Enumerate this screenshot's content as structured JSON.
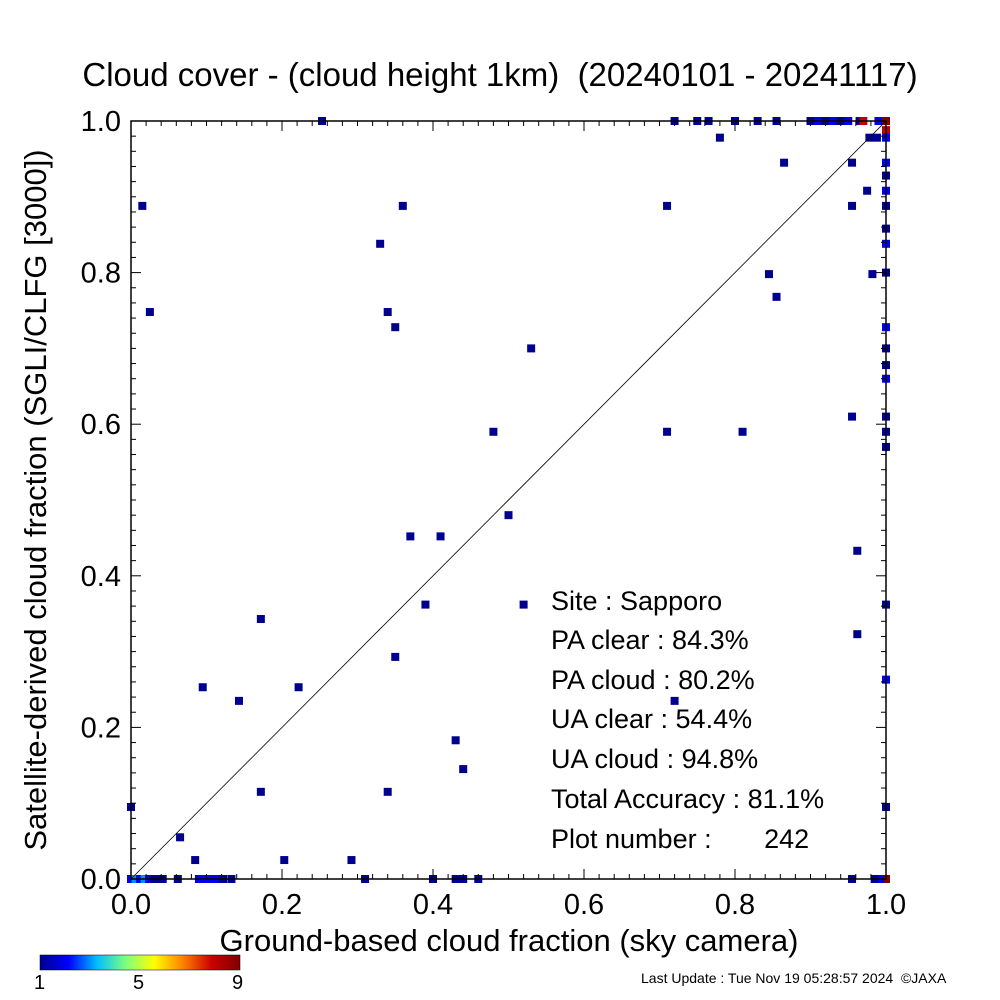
{
  "chart_data": {
    "type": "scatter",
    "title": "Cloud cover - (cloud height 1km)  (20240101 - 20241117)",
    "xlabel": "Ground-based cloud fraction (sky camera)",
    "ylabel": "Satellite-derived cloud fraction (SGLI/CLFG [3000])",
    "xlim": [
      0,
      1
    ],
    "ylim": [
      0,
      1
    ],
    "xticks": [
      "0.0",
      "0.2",
      "0.4",
      "0.6",
      "0.8",
      "1.0"
    ],
    "yticks": [
      "0.0",
      "0.2",
      "0.4",
      "0.6",
      "0.8",
      "1.0"
    ],
    "diagonal_line": true,
    "stats": {
      "site": "Site : Sapporo",
      "pa_clear": "PA clear :  84.3%",
      "pa_cloud": "PA cloud :  80.2%",
      "ua_clear": "UA clear :  54.4%",
      "ua_cloud": "UA cloud :  94.8%",
      "total_accuracy": "Total Accuracy :  81.1%",
      "plot_number": "Plot number :       242"
    },
    "colorbar": {
      "min_label": "1",
      "mid_label": "5",
      "max_label": "9",
      "colors": [
        "#00008f",
        "#0000ff",
        "#00bfff",
        "#7fff7f",
        "#ffff00",
        "#ff8000",
        "#cc0000",
        "#800000"
      ]
    },
    "points": [
      {
        "x": 0.0,
        "y": 0.095,
        "c": 1
      },
      {
        "x": 0.015,
        "y": 0.888,
        "c": 1
      },
      {
        "x": 0.025,
        "y": 0.748,
        "c": 1
      },
      {
        "x": 0.065,
        "y": 0.055,
        "c": 1
      },
      {
        "x": 0.085,
        "y": 0.025,
        "c": 1
      },
      {
        "x": 0.095,
        "y": 0.253,
        "c": 1
      },
      {
        "x": 0.143,
        "y": 0.235,
        "c": 1
      },
      {
        "x": 0.172,
        "y": 0.343,
        "c": 1
      },
      {
        "x": 0.172,
        "y": 0.115,
        "c": 1
      },
      {
        "x": 0.203,
        "y": 0.025,
        "c": 1
      },
      {
        "x": 0.222,
        "y": 0.253,
        "c": 1
      },
      {
        "x": 0.253,
        "y": 1.0,
        "c": 1
      },
      {
        "x": 0.292,
        "y": 0.025,
        "c": 1
      },
      {
        "x": 0.33,
        "y": 0.838,
        "c": 1
      },
      {
        "x": 0.34,
        "y": 0.748,
        "c": 1
      },
      {
        "x": 0.35,
        "y": 0.728,
        "c": 1
      },
      {
        "x": 0.35,
        "y": 0.293,
        "c": 1
      },
      {
        "x": 0.34,
        "y": 0.115,
        "c": 1
      },
      {
        "x": 0.36,
        "y": 0.888,
        "c": 1
      },
      {
        "x": 0.37,
        "y": 0.452,
        "c": 1
      },
      {
        "x": 0.39,
        "y": 0.362,
        "c": 1
      },
      {
        "x": 0.41,
        "y": 0.452,
        "c": 1
      },
      {
        "x": 0.43,
        "y": 0.183,
        "c": 1
      },
      {
        "x": 0.44,
        "y": 0.145,
        "c": 1
      },
      {
        "x": 0.48,
        "y": 0.59,
        "c": 1
      },
      {
        "x": 0.5,
        "y": 0.48,
        "c": 1
      },
      {
        "x": 0.52,
        "y": 0.362,
        "c": 1
      },
      {
        "x": 0.53,
        "y": 0.7,
        "c": 1
      },
      {
        "x": 0.71,
        "y": 0.888,
        "c": 1
      },
      {
        "x": 0.71,
        "y": 0.59,
        "c": 1
      },
      {
        "x": 0.72,
        "y": 0.235,
        "c": 1
      },
      {
        "x": 0.72,
        "y": 1.0,
        "c": 1
      },
      {
        "x": 0.75,
        "y": 1.0,
        "c": 1
      },
      {
        "x": 0.765,
        "y": 1.0,
        "c": 1
      },
      {
        "x": 0.78,
        "y": 0.978,
        "c": 1
      },
      {
        "x": 0.8,
        "y": 1.0,
        "c": 1
      },
      {
        "x": 0.81,
        "y": 0.59,
        "c": 1
      },
      {
        "x": 0.83,
        "y": 1.0,
        "c": 1
      },
      {
        "x": 0.845,
        "y": 0.798,
        "c": 1
      },
      {
        "x": 0.855,
        "y": 0.768,
        "c": 1
      },
      {
        "x": 0.855,
        "y": 1.0,
        "c": 1
      },
      {
        "x": 0.865,
        "y": 0.945,
        "c": 1
      },
      {
        "x": 0.9,
        "y": 1.0,
        "c": 1
      },
      {
        "x": 0.91,
        "y": 1.0,
        "c": 2
      },
      {
        "x": 0.92,
        "y": 1.0,
        "c": 1
      },
      {
        "x": 0.93,
        "y": 1.0,
        "c": 2
      },
      {
        "x": 0.94,
        "y": 1.0,
        "c": 1
      },
      {
        "x": 0.95,
        "y": 1.0,
        "c": 2
      },
      {
        "x": 0.955,
        "y": 0.945,
        "c": 1
      },
      {
        "x": 0.955,
        "y": 0.888,
        "c": 1
      },
      {
        "x": 0.955,
        "y": 0.61,
        "c": 1
      },
      {
        "x": 0.962,
        "y": 0.433,
        "c": 1
      },
      {
        "x": 0.962,
        "y": 0.323,
        "c": 1
      },
      {
        "x": 0.965,
        "y": 1.0,
        "c": 1
      },
      {
        "x": 0.97,
        "y": 1.0,
        "c": 8
      },
      {
        "x": 0.975,
        "y": 0.908,
        "c": 1
      },
      {
        "x": 0.978,
        "y": 0.978,
        "c": 1
      },
      {
        "x": 0.982,
        "y": 0.798,
        "c": 1
      },
      {
        "x": 0.988,
        "y": 0.978,
        "c": 1
      },
      {
        "x": 0.99,
        "y": 1.0,
        "c": 2
      },
      {
        "x": 1.0,
        "y": 1.0,
        "c": 9
      },
      {
        "x": 1.0,
        "y": 0.988,
        "c": 8
      },
      {
        "x": 1.0,
        "y": 0.978,
        "c": 2
      },
      {
        "x": 1.0,
        "y": 0.945,
        "c": 2
      },
      {
        "x": 1.0,
        "y": 0.928,
        "c": 1
      },
      {
        "x": 1.0,
        "y": 0.908,
        "c": 2
      },
      {
        "x": 1.0,
        "y": 0.888,
        "c": 1
      },
      {
        "x": 1.0,
        "y": 0.858,
        "c": 1
      },
      {
        "x": 1.0,
        "y": 0.838,
        "c": 2
      },
      {
        "x": 1.0,
        "y": 0.8,
        "c": 1
      },
      {
        "x": 1.0,
        "y": 0.728,
        "c": 2
      },
      {
        "x": 1.0,
        "y": 0.7,
        "c": 1
      },
      {
        "x": 1.0,
        "y": 0.678,
        "c": 1
      },
      {
        "x": 1.0,
        "y": 0.66,
        "c": 2
      },
      {
        "x": 1.0,
        "y": 0.61,
        "c": 1
      },
      {
        "x": 1.0,
        "y": 0.59,
        "c": 1
      },
      {
        "x": 1.0,
        "y": 0.57,
        "c": 1
      },
      {
        "x": 1.0,
        "y": 0.362,
        "c": 1
      },
      {
        "x": 1.0,
        "y": 0.263,
        "c": 2
      },
      {
        "x": 1.0,
        "y": 0.095,
        "c": 1
      },
      {
        "x": 1.0,
        "y": 0.0,
        "c": 9
      },
      {
        "x": 0.992,
        "y": 0.0,
        "c": 2
      },
      {
        "x": 0.985,
        "y": 0.0,
        "c": 1
      },
      {
        "x": 0.955,
        "y": 0.0,
        "c": 1
      },
      {
        "x": 0.0,
        "y": 0.0,
        "c": 2
      },
      {
        "x": 0.006,
        "y": 0.0,
        "c": 3
      },
      {
        "x": 0.012,
        "y": 0.0,
        "c": 2
      },
      {
        "x": 0.018,
        "y": 0.0,
        "c": 3
      },
      {
        "x": 0.024,
        "y": 0.0,
        "c": 2
      },
      {
        "x": 0.03,
        "y": 0.0,
        "c": 1
      },
      {
        "x": 0.036,
        "y": 0.0,
        "c": 1
      },
      {
        "x": 0.042,
        "y": 0.0,
        "c": 1
      },
      {
        "x": 0.062,
        "y": 0.0,
        "c": 1
      },
      {
        "x": 0.09,
        "y": 0.0,
        "c": 2
      },
      {
        "x": 0.098,
        "y": 0.0,
        "c": 2
      },
      {
        "x": 0.106,
        "y": 0.0,
        "c": 2
      },
      {
        "x": 0.114,
        "y": 0.0,
        "c": 2
      },
      {
        "x": 0.122,
        "y": 0.0,
        "c": 1
      },
      {
        "x": 0.133,
        "y": 0.0,
        "c": 1
      },
      {
        "x": 0.31,
        "y": 0.0,
        "c": 1
      },
      {
        "x": 0.4,
        "y": 0.0,
        "c": 1
      },
      {
        "x": 0.43,
        "y": 0.0,
        "c": 1
      },
      {
        "x": 0.435,
        "y": 0.0,
        "c": 1
      },
      {
        "x": 0.44,
        "y": 0.0,
        "c": 1
      },
      {
        "x": 0.46,
        "y": 0.0,
        "c": 1
      }
    ]
  },
  "footer": "Last Update : Tue Nov 19 05:28:57 2024  ©JAXA"
}
